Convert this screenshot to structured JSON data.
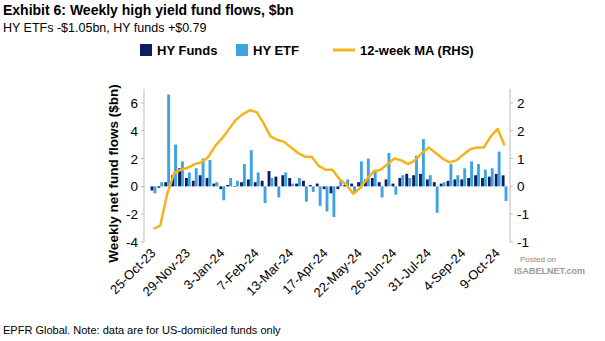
{
  "chart_data": {
    "type": "bar",
    "title": "Exhibit 6: Weekly high yield fund flows, $bn",
    "subtitle": "HY ETFs -$1.05bn, HY funds +$0.79",
    "y_label": "Weekly net fund flows ($bn)",
    "caption": "EPFR Global. Note: data are for US-domiciled funds only",
    "annotations": [
      "Posted on",
      "ISABELNET.com"
    ],
    "categories": [
      "25-Oct-23",
      null,
      null,
      null,
      null,
      "29-Nov-23",
      null,
      null,
      null,
      null,
      "3-Jan-24",
      null,
      null,
      null,
      null,
      "7-Feb-24",
      null,
      null,
      null,
      null,
      "13-Mar-24",
      null,
      null,
      null,
      null,
      "17-Apr-24",
      null,
      null,
      null,
      null,
      "22-May-24",
      null,
      null,
      null,
      null,
      "26-Jun-24",
      null,
      null,
      null,
      null,
      "31-Jul-24",
      null,
      null,
      null,
      null,
      "4-Sep-24",
      null,
      null,
      null,
      null,
      "9-Oct-24",
      null
    ],
    "series": [
      {
        "name": "HY Funds",
        "type": "bar",
        "color": "#0d1f5e",
        "values": [
          -0.3,
          -0.1,
          0.3,
          0.8,
          1.3,
          0.6,
          0.4,
          0.8,
          0.6,
          0.2,
          -0.2,
          0.1,
          0.0,
          0.3,
          0.5,
          0.3,
          0.4,
          1.1,
          0.7,
          0.8,
          0.6,
          0.2,
          0.4,
          0.1,
          0.2,
          -0.2,
          -0.5,
          -0.2,
          0.1,
          0.2,
          0.3,
          0.5,
          0.6,
          0.3,
          0.5,
          0.2,
          0.6,
          0.9,
          0.8,
          0.9,
          0.5,
          0.3,
          0.2,
          0.4,
          0.5,
          0.5,
          0.6,
          0.8,
          0.6,
          0.7,
          0.9,
          0.79
        ]
      },
      {
        "name": "HY ETF",
        "type": "bar",
        "color": "#3da3e3",
        "values": [
          -0.5,
          0.3,
          6.6,
          3.0,
          1.8,
          1.0,
          1.3,
          2.0,
          1.9,
          0.3,
          -1.0,
          0.6,
          0.4,
          1.6,
          2.6,
          1.0,
          -1.2,
          0.6,
          -0.8,
          1.0,
          0.2,
          0.6,
          -1.1,
          -0.4,
          -1.4,
          -1.8,
          -2.2,
          0.4,
          0.5,
          -0.5,
          1.8,
          2.0,
          1.2,
          -0.8,
          2.4,
          -0.6,
          0.8,
          0.6,
          2.2,
          3.4,
          0.8,
          -1.9,
          0.3,
          1.6,
          0.8,
          1.3,
          1.8,
          1.6,
          1.2,
          1.3,
          2.5,
          -1.05
        ]
      },
      {
        "name": "12-week MA (RHS)",
        "type": "line",
        "axis": "y2",
        "color": "#f6b21c",
        "values": [
          -1.15,
          -1.05,
          -0.2,
          0.35,
          0.45,
          0.5,
          0.6,
          0.65,
          0.8,
          1.1,
          1.3,
          1.55,
          1.8,
          1.95,
          2.05,
          2.0,
          1.7,
          1.35,
          1.25,
          1.2,
          1.05,
          0.9,
          0.8,
          0.8,
          0.55,
          0.45,
          0.45,
          0.2,
          0.05,
          -0.2,
          -0.05,
          0.2,
          0.4,
          0.45,
          0.6,
          0.75,
          0.7,
          0.6,
          0.7,
          0.9,
          1.05,
          0.9,
          0.75,
          0.65,
          0.7,
          0.85,
          1.0,
          1.05,
          1.05,
          1.35,
          1.55,
          1.1
        ]
      }
    ],
    "ylim": [
      -4,
      7
    ],
    "yticks": [
      -4,
      -2,
      0,
      2,
      4,
      6
    ],
    "y2lim": [
      -1.5,
      2.625
    ],
    "y2ticks": [
      {
        "value": -1.5,
        "label": "-1"
      },
      {
        "value": -0.75,
        "label": "-1"
      },
      0,
      {
        "value": 0.75,
        "label": "1"
      },
      {
        "value": 1.5,
        "label": "2"
      },
      {
        "value": 2.25,
        "label": "2"
      }
    ],
    "grid": false,
    "legend": "top",
    "stacked": false
  }
}
